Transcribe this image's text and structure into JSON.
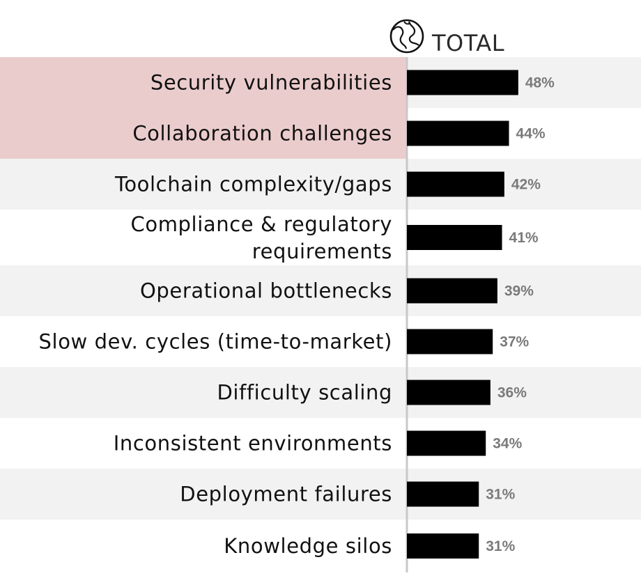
{
  "chart_data": {
    "type": "bar",
    "orientation": "horizontal",
    "column_header": "TOTAL",
    "header_icon": "globe-icon",
    "categories": [
      "Security vulnerabilities",
      "Collaboration challenges",
      "Toolchain complexity/gaps",
      "Compliance & regulatory requirements",
      "Operational bottlenecks",
      "Slow dev. cycles (time-to-market)",
      "Difficulty scaling",
      "Inconsistent environments",
      "Deployment failures",
      "Knowledge silos"
    ],
    "values": [
      48,
      44,
      42,
      41,
      39,
      37,
      36,
      34,
      31,
      31
    ],
    "value_labels": [
      "48%",
      "44%",
      "42%",
      "41%",
      "39%",
      "37%",
      "36%",
      "34%",
      "31%",
      "31%"
    ],
    "highlighted": [
      0,
      1
    ],
    "colors": {
      "bar": "#000000",
      "highlight": "#ebcccc",
      "stripe": "#f2f2f2",
      "axis": "#c8c8c8",
      "value_text": "#7a7a7a"
    },
    "title": "",
    "xlabel": "",
    "ylabel": ""
  }
}
